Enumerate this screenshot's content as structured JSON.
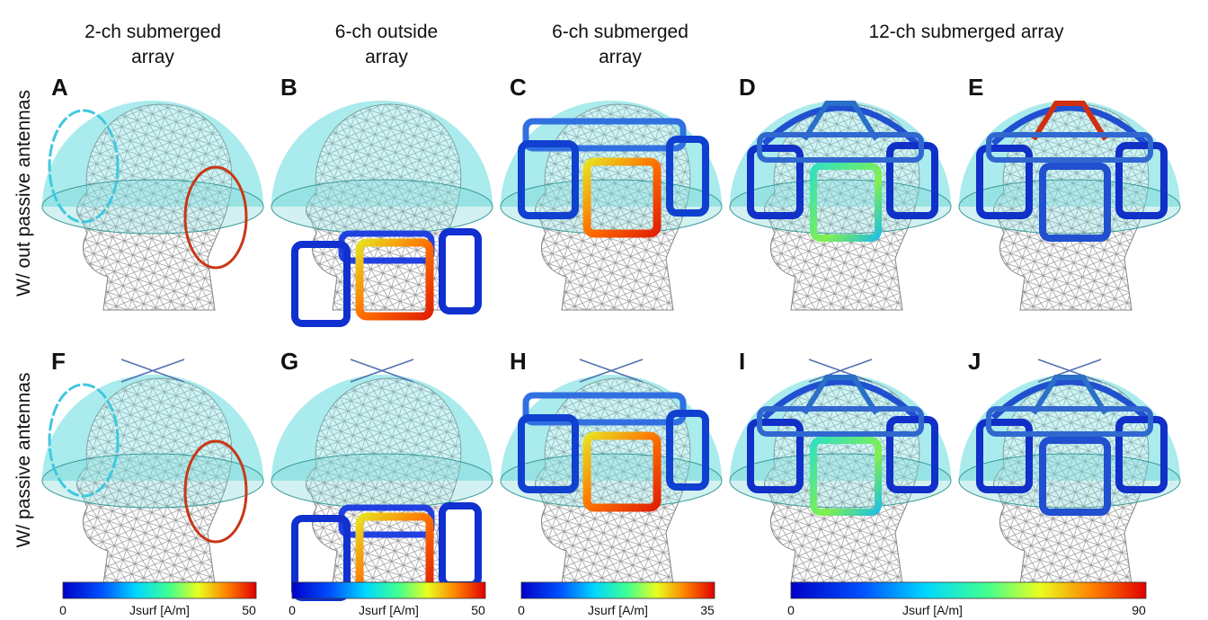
{
  "column_headers": [
    {
      "lines": [
        "2-ch submerged",
        "array"
      ]
    },
    {
      "lines": [
        "6-ch outside",
        "array"
      ]
    },
    {
      "lines": [
        "6-ch submerged",
        "array"
      ]
    },
    {
      "lines": [
        "12-ch submerged array"
      ]
    }
  ],
  "row_labels": [
    "W/ out passive antennas",
    "W/ passive antennas"
  ],
  "panels": [
    {
      "label": "A"
    },
    {
      "label": "B"
    },
    {
      "label": "C"
    },
    {
      "label": "D"
    },
    {
      "label": "E"
    },
    {
      "label": "F"
    },
    {
      "label": "G"
    },
    {
      "label": "H"
    },
    {
      "label": "I"
    },
    {
      "label": "J"
    }
  ],
  "colorbars": [
    {
      "min": 0,
      "unit": "Jsurf [A/m]",
      "max": 50
    },
    {
      "min": 0,
      "unit": "Jsurf [A/m]",
      "max": 50
    },
    {
      "min": 0,
      "unit": "Jsurf [A/m]",
      "max": 35
    },
    {
      "min": 0,
      "unit": "Jsurf [A/m]",
      "max": 90
    }
  ]
}
